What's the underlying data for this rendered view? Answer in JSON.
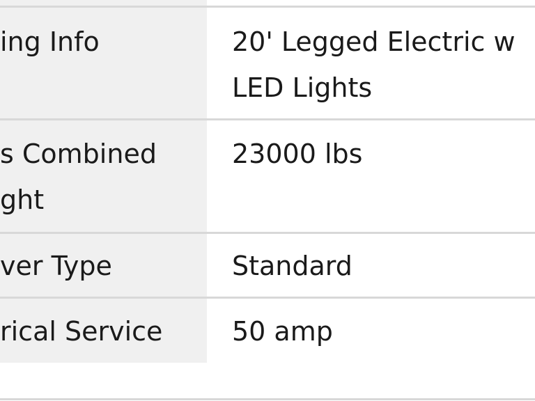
{
  "rows": [
    {
      "label_lines": [
        "ing Info"
      ],
      "value_lines": [
        "20' Legged Electric w",
        "LED Lights"
      ]
    },
    {
      "label_lines": [
        "s Combined",
        "ght"
      ],
      "value_lines": [
        "23000 lbs"
      ]
    },
    {
      "label_lines": [
        "ver Type"
      ],
      "value_lines": [
        "Standard"
      ]
    },
    {
      "label_lines": [
        "rical Service"
      ],
      "value_lines": [
        "50 amp"
      ]
    }
  ],
  "colors": {
    "label_background": "#f0f0f0",
    "divider": "#d8d8d8",
    "text": "#1a1a1a"
  }
}
